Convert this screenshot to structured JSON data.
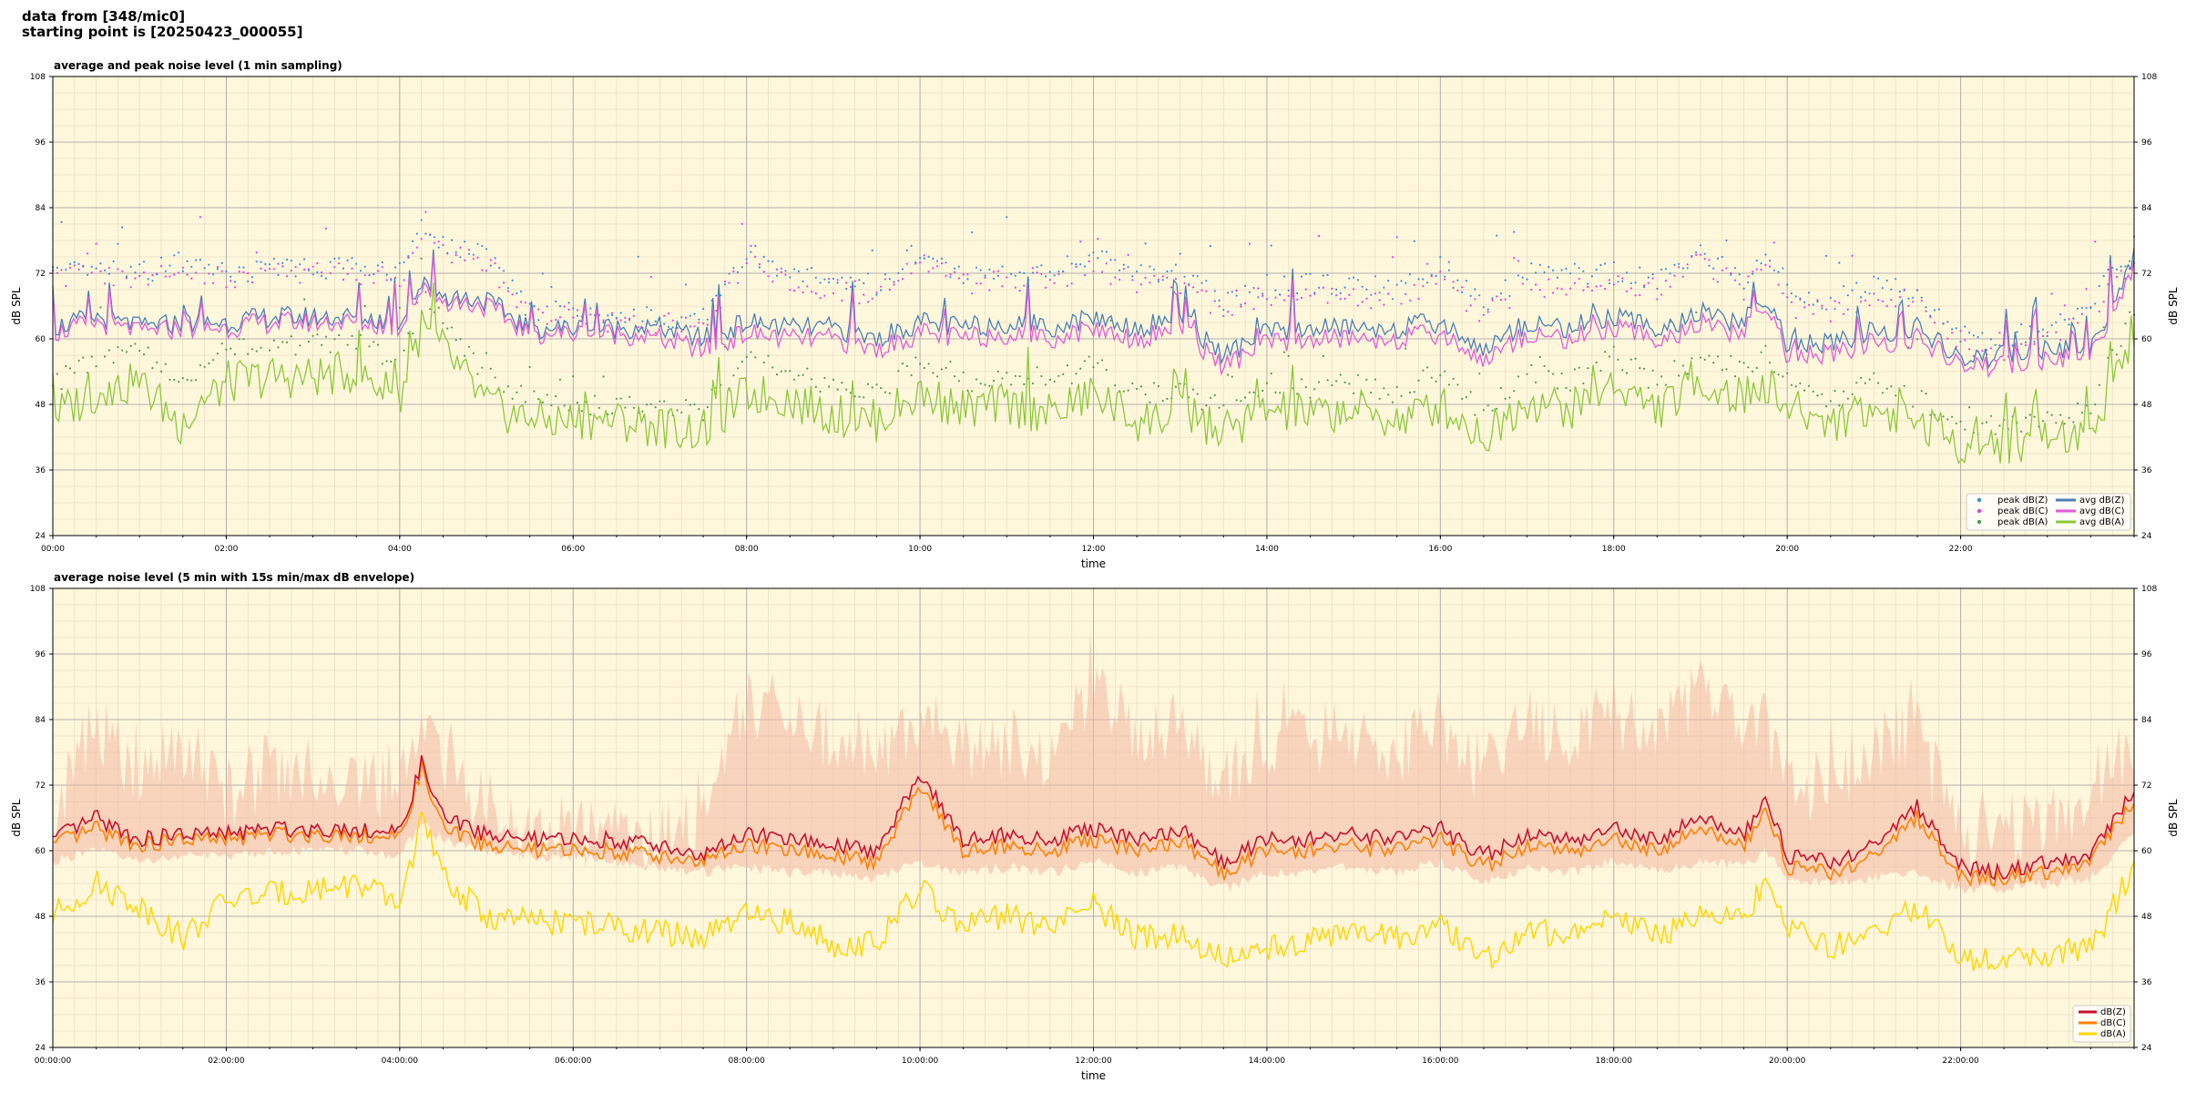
{
  "header": {
    "line1": "data from [348/mic0]",
    "line2": "starting point is [20250423_000055]"
  },
  "colors": {
    "panel_bg": "#fff7dc",
    "grid_major": "#b0b0b0",
    "grid_minor": "#e6dcc0",
    "zpeak": "#3a8ed6",
    "cpeak": "#e63fd8",
    "apeak": "#4f9a4f",
    "zavg": "#4a7fb5",
    "cavg": "#e05ad8",
    "aavg": "#8cc83a",
    "z5": "#c8102e",
    "c5": "#ff8000",
    "a5": "#ffd700",
    "envelope": "#f4b8a4"
  },
  "chart_data": [
    {
      "type": "line",
      "title": "average and peak noise level (1 min sampling)",
      "xlabel": "time",
      "ylabel": "dB SPL",
      "ylabel_right": "dB SPL",
      "ylim": [
        24,
        108
      ],
      "yticks": [
        "24",
        "36",
        "48",
        "60",
        "72",
        "84",
        "96",
        "108"
      ],
      "xlim_hours": [
        0,
        24
      ],
      "xtick_labels": [
        "00:00",
        "02:00",
        "04:00",
        "06:00",
        "08:00",
        "10:00",
        "12:00",
        "14:00",
        "16:00",
        "18:00",
        "20:00",
        "22:00"
      ],
      "grid": true,
      "legend_placement": "bottom-right",
      "legend": [
        "peak dB(Z)",
        "peak dB(C)",
        "peak dB(A)",
        "avg dB(Z)",
        "avg dB(C)",
        "avg dB(A)"
      ],
      "x_hours": [
        0.0,
        0.5,
        1.0,
        1.5,
        2.0,
        2.5,
        3.0,
        3.5,
        4.0,
        4.25,
        4.5,
        5.0,
        5.5,
        6.0,
        6.5,
        7.0,
        7.5,
        8.0,
        8.5,
        9.0,
        9.5,
        10.0,
        10.5,
        11.0,
        11.5,
        12.0,
        12.5,
        13.0,
        13.5,
        14.0,
        14.5,
        15.0,
        15.5,
        16.0,
        16.5,
        17.0,
        17.5,
        18.0,
        18.5,
        19.0,
        19.5,
        19.75,
        20.0,
        20.5,
        21.0,
        21.5,
        22.0,
        22.5,
        23.0,
        23.5,
        24.0
      ],
      "series": [
        {
          "name": "avg dB(Z)",
          "values": [
            62,
            64,
            62,
            63,
            63,
            64,
            64,
            64,
            63,
            70,
            68,
            67,
            62,
            62,
            62,
            62,
            60,
            63,
            62,
            62,
            60,
            63,
            62,
            63,
            62,
            64,
            62,
            64,
            57,
            61,
            62,
            62,
            62,
            63,
            58,
            63,
            62,
            64,
            62,
            64,
            63,
            68,
            59,
            59,
            61,
            62,
            56,
            57,
            58,
            58,
            75
          ]
        },
        {
          "name": "avg dB(C)",
          "values": [
            61,
            63,
            61,
            62,
            62,
            63,
            63,
            63,
            62,
            69,
            67,
            66,
            61,
            61,
            61,
            60,
            58,
            61,
            60,
            60,
            58,
            61,
            60,
            61,
            60,
            62,
            60,
            62,
            55,
            59,
            60,
            60,
            60,
            61,
            56,
            61,
            60,
            62,
            60,
            62,
            61,
            67,
            57,
            57,
            59,
            60,
            55,
            55,
            56,
            57,
            73
          ]
        },
        {
          "name": "avg dB(A)",
          "values": [
            46,
            50,
            52,
            44,
            52,
            53,
            53,
            54,
            49,
            62,
            58,
            48,
            45,
            45,
            45,
            44,
            43,
            50,
            49,
            46,
            45,
            50,
            47,
            48,
            46,
            50,
            45,
            46,
            43,
            47,
            46,
            47,
            45,
            48,
            42,
            49,
            47,
            52,
            47,
            52,
            49,
            52,
            47,
            45,
            47,
            45,
            41,
            41,
            42,
            43,
            62
          ]
        },
        {
          "name": "peak dB(Z)",
          "values": [
            72,
            73,
            72,
            74,
            72,
            73,
            73,
            73,
            72,
            80,
            77,
            75,
            65,
            65,
            64,
            64,
            64,
            76,
            72,
            71,
            70,
            76,
            72,
            73,
            72,
            75,
            72,
            72,
            67,
            70,
            70,
            70,
            69,
            73,
            66,
            72,
            71,
            72,
            71,
            76,
            71,
            75,
            68,
            67,
            70,
            69,
            59,
            60,
            62,
            67,
            77
          ]
        },
        {
          "name": "peak dB(C)",
          "values": [
            71,
            72,
            71,
            73,
            71,
            72,
            72,
            72,
            71,
            79,
            76,
            74,
            64,
            64,
            63,
            63,
            62,
            74,
            70,
            69,
            68,
            74,
            70,
            71,
            70,
            73,
            70,
            70,
            65,
            68,
            68,
            68,
            67,
            71,
            64,
            70,
            69,
            70,
            69,
            74,
            69,
            73,
            66,
            65,
            68,
            67,
            58,
            58,
            60,
            65,
            75
          ]
        },
        {
          "name": "peak dB(A)",
          "values": [
            52,
            56,
            58,
            52,
            58,
            59,
            59,
            60,
            55,
            68,
            64,
            52,
            49,
            48,
            48,
            47,
            47,
            56,
            54,
            51,
            50,
            56,
            52,
            53,
            51,
            56,
            50,
            51,
            47,
            52,
            51,
            52,
            50,
            54,
            46,
            54,
            52,
            57,
            52,
            57,
            54,
            57,
            52,
            49,
            52,
            49,
            44,
            44,
            45,
            47,
            66
          ]
        }
      ]
    },
    {
      "type": "area",
      "title": "average noise level (5 min with 15s min/max dB envelope)",
      "xlabel": "time",
      "ylabel": "dB SPL",
      "ylabel_right": "dB SPL",
      "ylim": [
        24,
        108
      ],
      "yticks": [
        "24",
        "36",
        "48",
        "60",
        "72",
        "84",
        "96",
        "108"
      ],
      "xlim_hours": [
        0,
        24
      ],
      "xtick_labels": [
        "00:00:00",
        "02:00:00",
        "04:00:00",
        "06:00:00",
        "08:00:00",
        "10:00:00",
        "12:00:00",
        "14:00:00",
        "16:00:00",
        "18:00:00",
        "20:00:00",
        "22:00:00"
      ],
      "grid": true,
      "legend_placement": "bottom-right",
      "legend": [
        "dB(Z)",
        "dB(C)",
        "dB(A)"
      ],
      "x_hours": [
        0.0,
        0.5,
        1.0,
        1.5,
        2.0,
        2.5,
        3.0,
        3.5,
        4.0,
        4.25,
        4.5,
        5.0,
        5.5,
        6.0,
        6.5,
        7.0,
        7.5,
        8.0,
        8.5,
        9.0,
        9.5,
        10.0,
        10.5,
        11.0,
        11.5,
        12.0,
        12.5,
        13.0,
        13.5,
        14.0,
        14.5,
        15.0,
        15.5,
        16.0,
        16.5,
        17.0,
        17.5,
        18.0,
        18.5,
        19.0,
        19.5,
        19.75,
        20.0,
        20.5,
        21.0,
        21.5,
        22.0,
        22.5,
        23.0,
        23.5,
        24.0
      ],
      "series": [
        {
          "name": "dB(Z)",
          "values": [
            62,
            66,
            62,
            63,
            63,
            64,
            64,
            64,
            63,
            76,
            66,
            63,
            62,
            62,
            62,
            61,
            59,
            63,
            62,
            61,
            60,
            74,
            62,
            63,
            62,
            64,
            62,
            64,
            58,
            62,
            62,
            63,
            62,
            64,
            59,
            63,
            62,
            64,
            62,
            66,
            63,
            70,
            59,
            58,
            61,
            68,
            57,
            56,
            58,
            59,
            71
          ]
        },
        {
          "name": "dB(C)",
          "values": [
            61,
            64,
            61,
            62,
            62,
            63,
            63,
            63,
            62,
            75,
            64,
            61,
            60,
            60,
            60,
            59,
            58,
            61,
            60,
            59,
            58,
            72,
            60,
            61,
            60,
            62,
            60,
            62,
            56,
            60,
            60,
            61,
            60,
            62,
            57,
            61,
            60,
            62,
            60,
            64,
            61,
            68,
            57,
            56,
            59,
            66,
            55,
            55,
            56,
            58,
            69
          ]
        },
        {
          "name": "dB(A)",
          "values": [
            48,
            54,
            50,
            44,
            51,
            52,
            53,
            54,
            50,
            66,
            55,
            48,
            47,
            47,
            46,
            45,
            44,
            48,
            47,
            43,
            43,
            53,
            46,
            48,
            46,
            50,
            44,
            45,
            40,
            42,
            44,
            45,
            44,
            46,
            40,
            45,
            45,
            49,
            44,
            49,
            47,
            55,
            46,
            42,
            45,
            50,
            40,
            40,
            41,
            42,
            57
          ]
        },
        {
          "name": "envelope max",
          "values": [
            66,
            84,
            72,
            80,
            70,
            75,
            74,
            74,
            70,
            86,
            76,
            68,
            64,
            64,
            63,
            62,
            65,
            88,
            84,
            80,
            78,
            84,
            80,
            80,
            78,
            88,
            82,
            84,
            72,
            80,
            80,
            82,
            78,
            84,
            74,
            84,
            80,
            86,
            80,
            90,
            82,
            84,
            72,
            72,
            80,
            82,
            62,
            64,
            66,
            70,
            80
          ]
        },
        {
          "name": "envelope min",
          "values": [
            58,
            60,
            58,
            59,
            59,
            60,
            60,
            60,
            59,
            65,
            62,
            60,
            59,
            59,
            58,
            57,
            56,
            57,
            56,
            56,
            55,
            58,
            56,
            57,
            56,
            58,
            56,
            57,
            53,
            56,
            56,
            57,
            56,
            58,
            54,
            57,
            56,
            58,
            56,
            58,
            57,
            60,
            55,
            54,
            55,
            56,
            53,
            53,
            54,
            55,
            63
          ]
        }
      ]
    }
  ]
}
